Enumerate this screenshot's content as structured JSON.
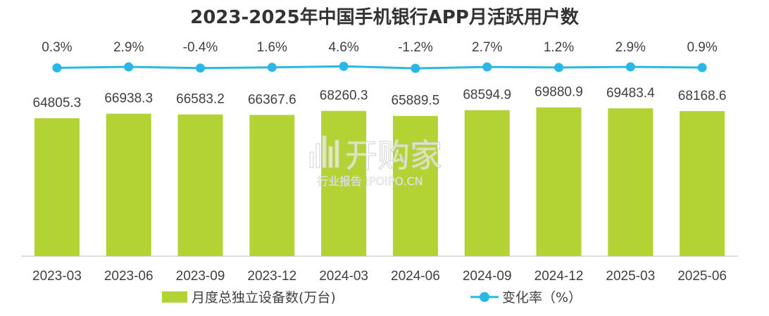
{
  "chart_data": {
    "type": "bar",
    "title": "2023-2025年中国手机银行APP月活跃用户数",
    "categories": [
      "2023-03",
      "2023-06",
      "2023-09",
      "2023-12",
      "2024-03",
      "2024-06",
      "2024-09",
      "2024-12",
      "2025-03",
      "2025-06"
    ],
    "series": [
      {
        "name": "月度总独立设备数(万台)",
        "type": "bar",
        "values": [
          64805.3,
          66938.3,
          66583.2,
          66367.6,
          68260.3,
          65889.5,
          68594.9,
          69880.9,
          69483.4,
          68168.6
        ],
        "labels": [
          "64805.3",
          "66938.3",
          "66583.2",
          "66367.6",
          "68260.3",
          "65889.5",
          "68594.9",
          "69880.9",
          "69483.4",
          "68168.6"
        ],
        "color": "#b3d334"
      },
      {
        "name": "变化率（%）",
        "type": "line",
        "values": [
          0.3,
          2.9,
          -0.4,
          1.6,
          4.6,
          -1.2,
          2.7,
          1.2,
          2.9,
          0.9
        ],
        "labels": [
          "0.3%",
          "2.9%",
          "-0.4%",
          "1.6%",
          "4.6%",
          "-1.2%",
          "2.7%",
          "1.2%",
          "2.9%",
          "0.9%"
        ],
        "color": "#29b8e6"
      }
    ],
    "legend_position": "bottom",
    "grid": false
  },
  "watermark": {
    "main": "开购家",
    "sub": "行业报告 IPOIPO.CN"
  }
}
